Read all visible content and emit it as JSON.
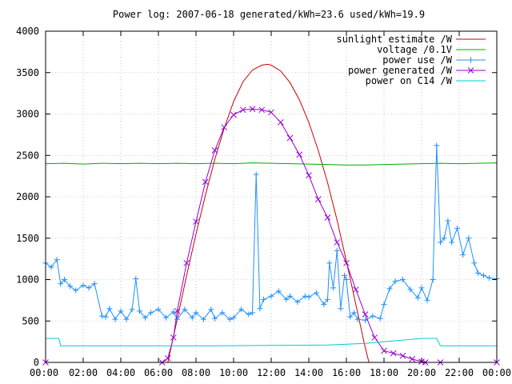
{
  "chart_data": {
    "type": "line",
    "title": "Power log: 2007-06-18 generated/kWh=23.6 used/kWh=19.9",
    "xlabel": "",
    "ylabel": "",
    "xlim": [
      0,
      24
    ],
    "ylim": [
      0,
      4000
    ],
    "x_ticks": [
      "00:00",
      "02:00",
      "04:00",
      "06:00",
      "08:00",
      "10:00",
      "12:00",
      "14:00",
      "16:00",
      "18:00",
      "20:00",
      "22:00",
      "00:00"
    ],
    "y_ticks": [
      "0",
      "500",
      "1000",
      "1500",
      "2000",
      "2500",
      "3000",
      "3500",
      "4000"
    ],
    "grid": true,
    "legend_position": "top-right",
    "series": [
      {
        "name": "sunlight estimate /W",
        "color": "#cc0000",
        "marker": "none",
        "x": [
          6.5,
          7,
          7.5,
          8,
          8.5,
          9,
          9.5,
          10,
          10.5,
          11,
          11.5,
          11.8,
          12,
          12.5,
          13,
          13.5,
          14,
          14.5,
          15,
          15.5,
          16,
          16.5,
          17,
          17.2
        ],
        "y": [
          0,
          520,
          1050,
          1550,
          2020,
          2450,
          2830,
          3150,
          3390,
          3530,
          3590,
          3600,
          3590,
          3520,
          3380,
          3170,
          2900,
          2560,
          2170,
          1720,
          1220,
          700,
          180,
          0
        ]
      },
      {
        "name": "voltage /0.1V",
        "color": "#00aa00",
        "marker": "none",
        "x": [
          0,
          1,
          2,
          3,
          4,
          5,
          6,
          7,
          8,
          9,
          10,
          11,
          12,
          13,
          14,
          15,
          16,
          17,
          18,
          19,
          20,
          21,
          22,
          23,
          24
        ],
        "y": [
          2400,
          2405,
          2395,
          2405,
          2400,
          2405,
          2400,
          2405,
          2400,
          2405,
          2400,
          2410,
          2405,
          2400,
          2395,
          2390,
          2385,
          2385,
          2390,
          2395,
          2400,
          2405,
          2400,
          2405,
          2410
        ]
      },
      {
        "name": "power use /W",
        "color": "#1e90ff",
        "marker": "plus",
        "x": [
          0,
          0.3,
          0.6,
          0.8,
          1,
          1.3,
          1.6,
          2,
          2.3,
          2.6,
          3,
          3.2,
          3.4,
          3.7,
          4,
          4.3,
          4.6,
          4.8,
          5,
          5.3,
          5.6,
          6,
          6.4,
          6.8,
          7,
          7.4,
          7.8,
          8,
          8.4,
          8.8,
          9,
          9.4,
          9.8,
          10,
          10.4,
          10.8,
          11,
          11.2,
          11.4,
          11.6,
          12,
          12.4,
          12.8,
          13,
          13.4,
          13.8,
          14,
          14.4,
          14.8,
          15,
          15.1,
          15.3,
          15.5,
          15.7,
          15.9,
          16,
          16.2,
          16.4,
          16.6,
          17,
          17.4,
          17.8,
          18,
          18.3,
          18.6,
          19,
          19.4,
          19.8,
          20,
          20.3,
          20.6,
          20.8,
          21,
          21.2,
          21.4,
          21.6,
          21.9,
          22.2,
          22.5,
          22.8,
          23,
          23.3,
          23.6,
          24
        ],
        "y": [
          1200,
          1150,
          1240,
          950,
          1000,
          920,
          870,
          930,
          900,
          950,
          560,
          550,
          650,
          520,
          620,
          520,
          640,
          1010,
          620,
          540,
          600,
          640,
          540,
          610,
          520,
          640,
          540,
          600,
          520,
          640,
          530,
          600,
          520,
          540,
          640,
          580,
          600,
          2270,
          650,
          760,
          800,
          860,
          760,
          800,
          730,
          800,
          790,
          840,
          700,
          760,
          1200,
          900,
          1350,
          650,
          1050,
          1000,
          550,
          600,
          520,
          510,
          560,
          530,
          700,
          890,
          980,
          1000,
          880,
          780,
          900,
          750,
          1000,
          2620,
          1450,
          1500,
          1710,
          1450,
          1620,
          1300,
          1500,
          1200,
          1080,
          1050,
          1020,
          1010
        ]
      },
      {
        "name": "power generated /W",
        "color": "#9400d3",
        "marker": "x",
        "x": [
          0,
          6.2,
          6.5,
          6.8,
          7,
          7.5,
          8,
          8.5,
          9,
          9.5,
          10,
          10.5,
          11,
          11.5,
          12,
          12.5,
          13,
          13.5,
          14,
          14.5,
          15,
          15.5,
          16,
          16.5,
          17,
          17.5,
          18,
          18.5,
          19,
          19.5,
          20,
          20.2,
          21,
          24
        ],
        "y": [
          0,
          0,
          50,
          300,
          620,
          1200,
          1700,
          2180,
          2560,
          2840,
          2990,
          3050,
          3060,
          3050,
          3020,
          2900,
          2710,
          2510,
          2260,
          1970,
          1750,
          1450,
          1200,
          880,
          580,
          300,
          140,
          110,
          80,
          40,
          10,
          0,
          0,
          0
        ]
      },
      {
        "name": "power on C14 /W",
        "color": "#00cccc",
        "marker": "none",
        "x": [
          0,
          0.7,
          0.8,
          3,
          6,
          9,
          12,
          15,
          16,
          17,
          18,
          19,
          20,
          20.8,
          21,
          22,
          23,
          24
        ],
        "y": [
          290,
          290,
          200,
          200,
          200,
          200,
          205,
          210,
          220,
          230,
          250,
          270,
          290,
          290,
          200,
          200,
          200,
          200
        ]
      }
    ]
  }
}
